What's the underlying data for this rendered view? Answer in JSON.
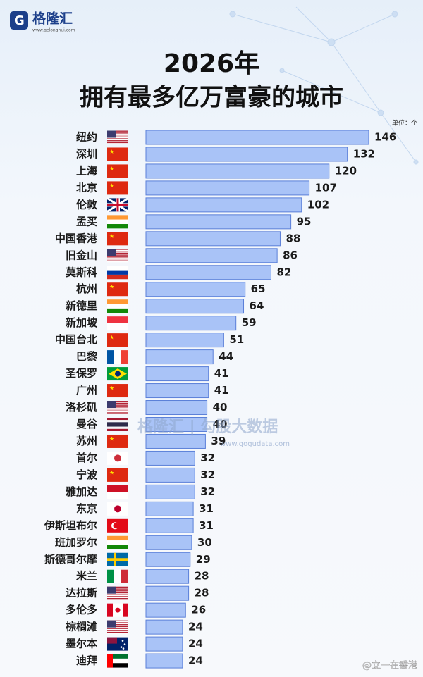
{
  "chart_data": {
    "type": "bar",
    "orientation": "horizontal",
    "logo": "格隆汇",
    "logo_url": "www.gelonghui.com",
    "title": "2026年",
    "subtitle": "拥有最多亿万富豪的城市",
    "unit": "单位：个",
    "watermark": "格隆汇 | 勾股大数据",
    "watermark_url": "www.gogudata.com",
    "credit": "@立一在香港",
    "color": "#a9c3f7",
    "edge_color": "#5a7fd8",
    "categories": [
      "纽约",
      "深圳",
      "上海",
      "北京",
      "伦敦",
      "孟买",
      "中国香港",
      "旧金山",
      "莫斯科",
      "杭州",
      "新德里",
      "新加坡",
      "中国台北",
      "巴黎",
      "圣保罗",
      "广州",
      "洛杉矶",
      "曼谷",
      "苏州",
      "首尔",
      "宁波",
      "雅加达",
      "东京",
      "伊斯坦布尔",
      "班加罗尔",
      "斯德哥尔摩",
      "米兰",
      "达拉斯",
      "多伦多",
      "棕榈滩",
      "墨尔本",
      "迪拜"
    ],
    "values": [
      146,
      132,
      120,
      107,
      102,
      95,
      88,
      86,
      82,
      65,
      64,
      59,
      51,
      44,
      41,
      41,
      40,
      40,
      39,
      32,
      32,
      32,
      31,
      31,
      30,
      29,
      28,
      28,
      26,
      24,
      24,
      24
    ]
  }
}
